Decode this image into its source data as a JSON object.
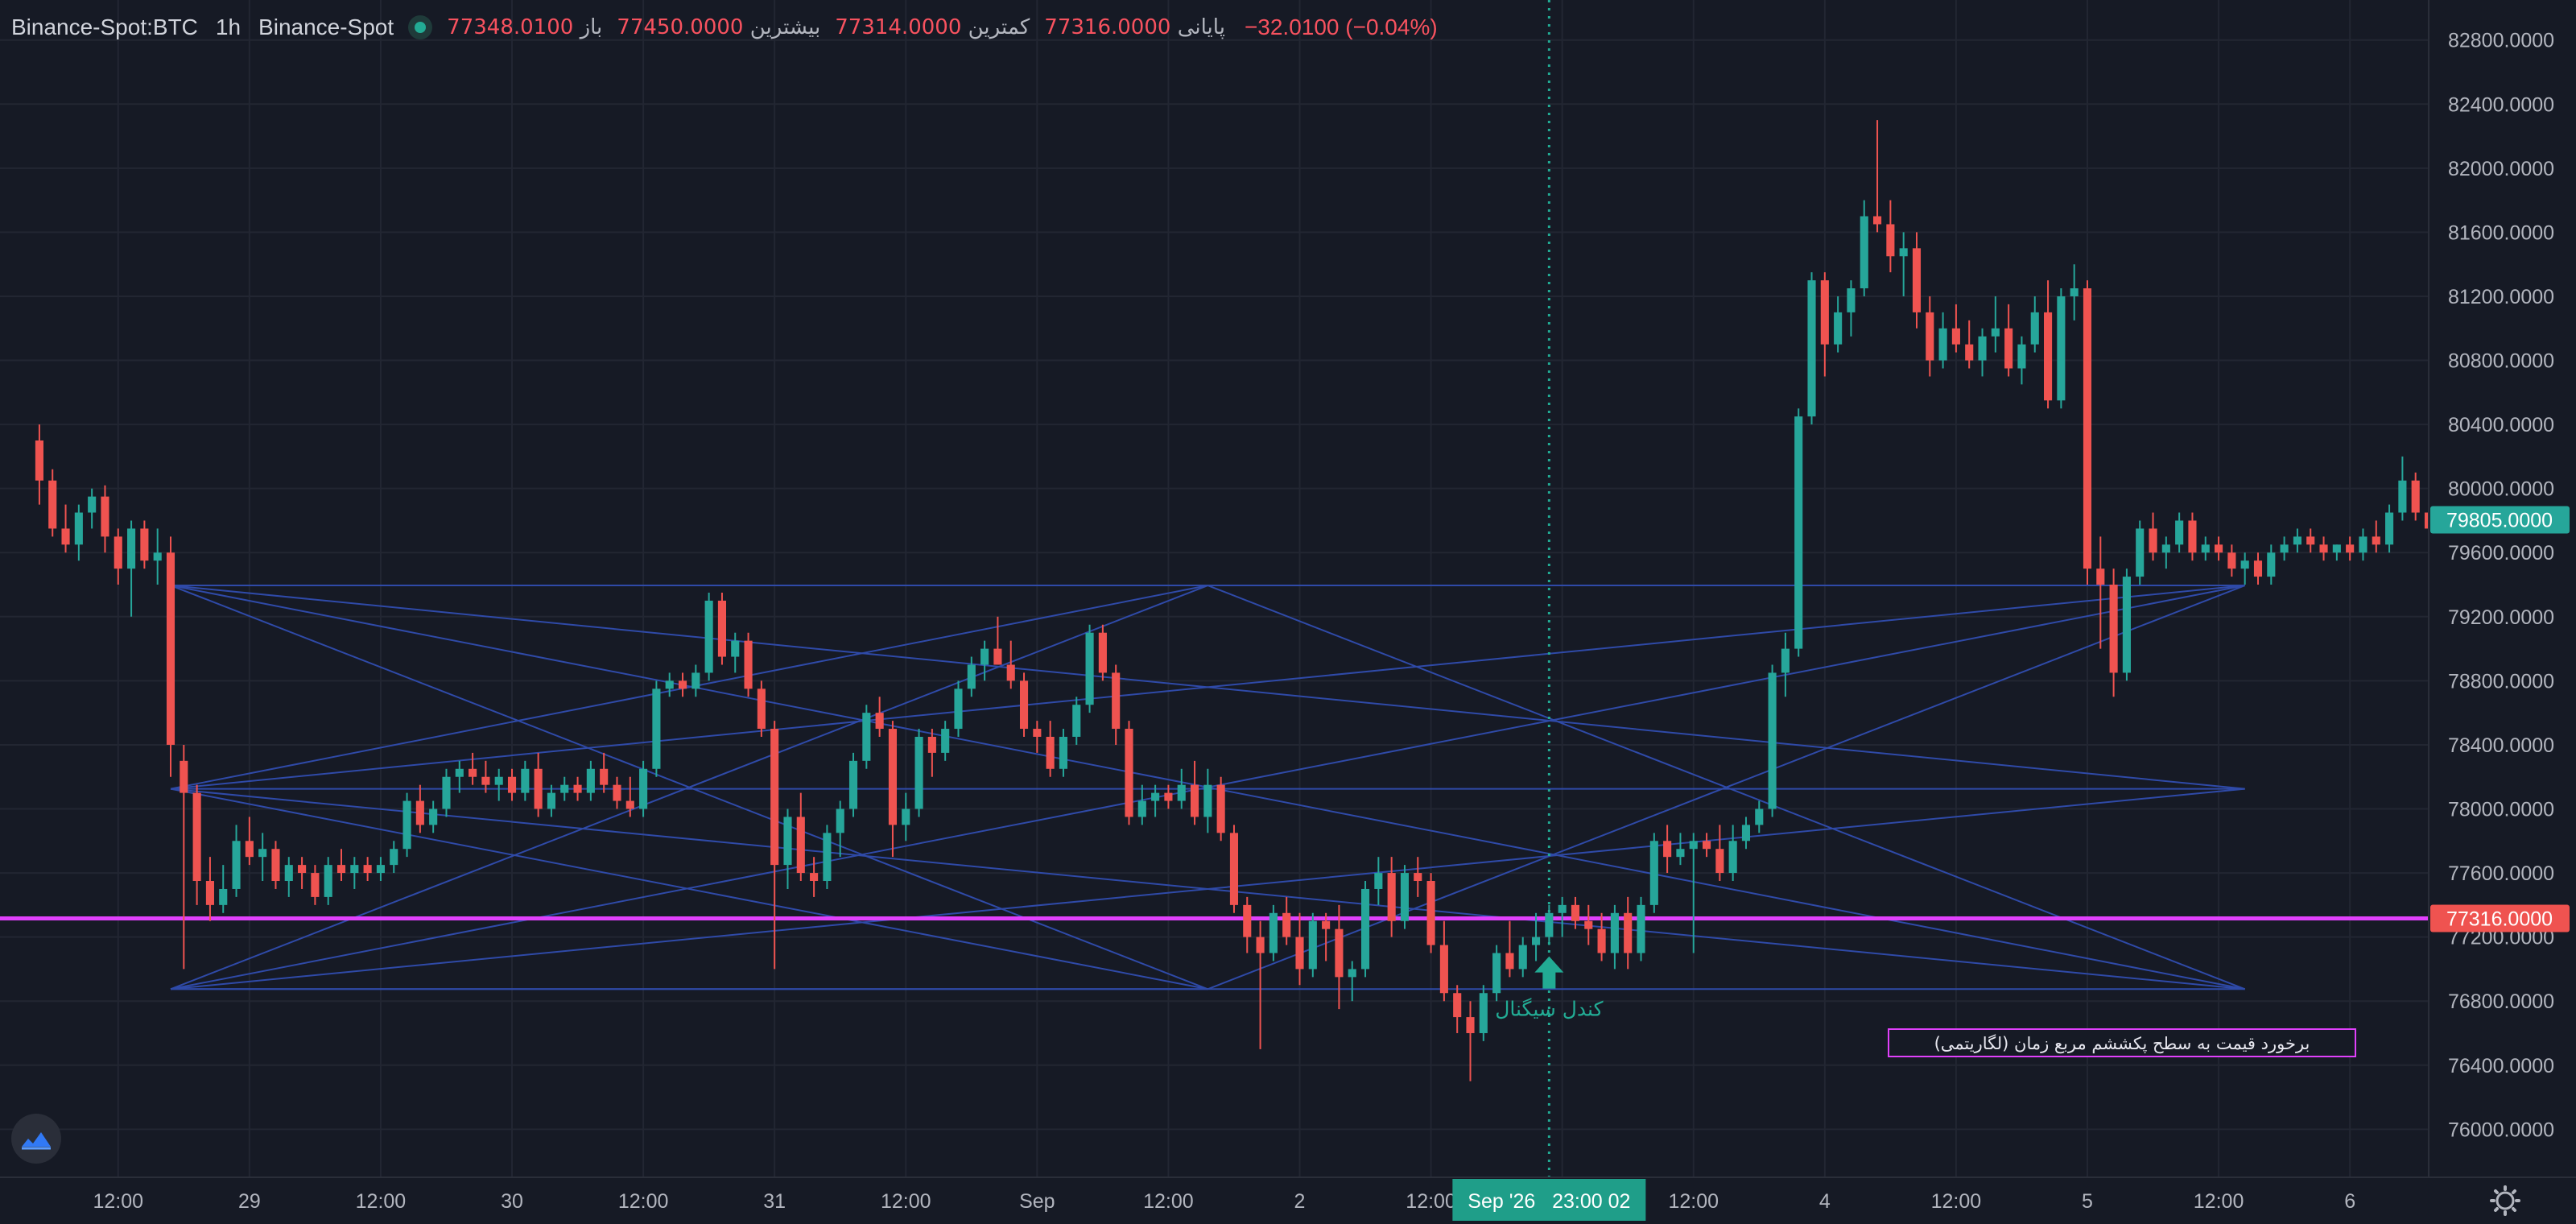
{
  "legend": {
    "symbol": "Binance-Spot:BTC",
    "interval": "1h",
    "exchange": "Binance-Spot",
    "open_label": "باز",
    "open": "77348.0100",
    "high_label": "بیشترین",
    "high": "77450.0000",
    "low_label": "کمترین",
    "low": "77314.0000",
    "close_label": "پایانی",
    "close": "77316.0000",
    "change": "−32.0100 (−0.04%)"
  },
  "colors": {
    "background": "#161a25",
    "up": "#26a69a",
    "down": "#ef5350",
    "level_line": "#e040fb",
    "fan_lines": "#2f4aa8",
    "crosshair": "#22ab94"
  },
  "annotations": {
    "signal_label": "کندل سیگنال",
    "box_text": "برخورد قیمت به سطح پکششم مربع زمان (لگاریتمی)"
  },
  "crosshair": {
    "label": "Sep '26   23:00 02"
  },
  "price_tags": {
    "current": "79805.0000",
    "level": "77316.0000"
  },
  "chart_data": {
    "type": "candlestick",
    "y_axis": {
      "ticks": [
        "82800.0000",
        "82400.0000",
        "82000.0000",
        "81600.0000",
        "81200.0000",
        "80800.0000",
        "80400.0000",
        "80000.0000",
        "79600.0000",
        "79200.0000",
        "78800.0000",
        "78400.0000",
        "78000.0000",
        "77600.0000",
        "77200.0000",
        "76800.0000",
        "76400.0000",
        "76000.0000"
      ],
      "tick_values": [
        82800,
        82400,
        82000,
        81600,
        81200,
        80800,
        80400,
        80000,
        79600,
        79200,
        78800,
        78400,
        78000,
        77600,
        77200,
        76800,
        76400,
        76000
      ],
      "range": [
        75700,
        83050
      ]
    },
    "x_axis": {
      "labels": [
        "12:00",
        "29",
        "12:00",
        "30",
        "12:00",
        "31",
        "12:00",
        "Sep",
        "12:00",
        "2",
        "12:00",
        "3",
        "12:00",
        "4",
        "12:00",
        "5",
        "12:00",
        "6"
      ],
      "label_bars": [
        6,
        16,
        26,
        36,
        46,
        56,
        66,
        76,
        86,
        96,
        106,
        116,
        126,
        136,
        146,
        156,
        166,
        176
      ],
      "range_bars": [
        -3,
        182
      ]
    },
    "horizontal_level": 77316,
    "crosshair_bar": 115,
    "signal_bar": 115,
    "fan_anchors": [
      {
        "bar": 10,
        "price": 79395
      },
      {
        "bar": 10,
        "price": 78125
      },
      {
        "bar": 10,
        "price": 76875
      },
      {
        "bar": 89,
        "price": 79395
      },
      {
        "bar": 89,
        "price": 76875
      },
      {
        "bar": 168,
        "price": 79395
      },
      {
        "bar": 168,
        "price": 78125
      },
      {
        "bar": 168,
        "price": 76875
      }
    ],
    "fan_lines": [
      [
        0,
        7
      ],
      [
        0,
        6
      ],
      [
        0,
        4
      ],
      [
        0,
        5
      ],
      [
        1,
        5
      ],
      [
        1,
        6
      ],
      [
        1,
        7
      ],
      [
        1,
        3
      ],
      [
        2,
        5
      ],
      [
        2,
        6
      ],
      [
        2,
        3
      ],
      [
        2,
        4
      ],
      [
        3,
        7
      ],
      [
        4,
        5
      ],
      [
        0,
        3
      ],
      [
        2,
        7
      ],
      [
        1,
        4
      ]
    ],
    "candles": [
      [
        80300,
        80400,
        79900,
        80050
      ],
      [
        80050,
        80120,
        79700,
        79750
      ],
      [
        79750,
        79900,
        79600,
        79650
      ],
      [
        79650,
        79900,
        79550,
        79850
      ],
      [
        79850,
        80000,
        79750,
        79950
      ],
      [
        79950,
        80020,
        79600,
        79700
      ],
      [
        79700,
        79750,
        79400,
        79500
      ],
      [
        79500,
        79800,
        79200,
        79750
      ],
      [
        79750,
        79800,
        79500,
        79550
      ],
      [
        79550,
        79750,
        79400,
        79600
      ],
      [
        79600,
        79700,
        78200,
        78400
      ],
      [
        78300,
        78400,
        77000,
        78100
      ],
      [
        78100,
        78150,
        77400,
        77550
      ],
      [
        77550,
        77700,
        77300,
        77400
      ],
      [
        77400,
        77650,
        77350,
        77500
      ],
      [
        77500,
        77900,
        77450,
        77800
      ],
      [
        77800,
        77950,
        77650,
        77700
      ],
      [
        77700,
        77850,
        77550,
        77750
      ],
      [
        77750,
        77800,
        77500,
        77550
      ],
      [
        77550,
        77700,
        77450,
        77650
      ],
      [
        77650,
        77700,
        77500,
        77600
      ],
      [
        77600,
        77650,
        77400,
        77450
      ],
      [
        77450,
        77700,
        77400,
        77650
      ],
      [
        77650,
        77750,
        77550,
        77600
      ],
      [
        77600,
        77700,
        77500,
        77650
      ],
      [
        77650,
        77700,
        77550,
        77600
      ],
      [
        77600,
        77700,
        77550,
        77650
      ],
      [
        77650,
        77800,
        77600,
        77750
      ],
      [
        77750,
        78100,
        77700,
        78050
      ],
      [
        78050,
        78150,
        77850,
        77900
      ],
      [
        77900,
        78050,
        77850,
        78000
      ],
      [
        78000,
        78250,
        77950,
        78200
      ],
      [
        78200,
        78300,
        78100,
        78250
      ],
      [
        78250,
        78350,
        78150,
        78200
      ],
      [
        78200,
        78300,
        78100,
        78150
      ],
      [
        78150,
        78250,
        78050,
        78200
      ],
      [
        78200,
        78250,
        78050,
        78100
      ],
      [
        78100,
        78300,
        78050,
        78250
      ],
      [
        78250,
        78350,
        77950,
        78000
      ],
      [
        78000,
        78150,
        77950,
        78100
      ],
      [
        78100,
        78200,
        78050,
        78150
      ],
      [
        78150,
        78200,
        78050,
        78100
      ],
      [
        78100,
        78300,
        78050,
        78250
      ],
      [
        78250,
        78350,
        78100,
        78150
      ],
      [
        78150,
        78200,
        78000,
        78050
      ],
      [
        78050,
        78200,
        77950,
        78000
      ],
      [
        78000,
        78300,
        77950,
        78250
      ],
      [
        78250,
        78800,
        78200,
        78750
      ],
      [
        78750,
        78850,
        78700,
        78800
      ],
      [
        78800,
        78850,
        78700,
        78750
      ],
      [
        78750,
        78900,
        78700,
        78850
      ],
      [
        78850,
        79350,
        78800,
        79300
      ],
      [
        79300,
        79350,
        78900,
        78950
      ],
      [
        78950,
        79100,
        78850,
        79050
      ],
      [
        79050,
        79100,
        78700,
        78750
      ],
      [
        78750,
        78800,
        78450,
        78500
      ],
      [
        78500,
        78550,
        77000,
        77650
      ],
      [
        77650,
        78000,
        77500,
        77950
      ],
      [
        77950,
        78100,
        77550,
        77600
      ],
      [
        77600,
        77700,
        77450,
        77550
      ],
      [
        77550,
        77900,
        77500,
        77850
      ],
      [
        77850,
        78050,
        77700,
        78000
      ],
      [
        78000,
        78350,
        77950,
        78300
      ],
      [
        78300,
        78650,
        78250,
        78600
      ],
      [
        78600,
        78700,
        78450,
        78500
      ],
      [
        78500,
        78550,
        77700,
        77900
      ],
      [
        77900,
        78100,
        77800,
        78000
      ],
      [
        78000,
        78500,
        77950,
        78450
      ],
      [
        78450,
        78500,
        78200,
        78350
      ],
      [
        78350,
        78550,
        78300,
        78500
      ],
      [
        78500,
        78800,
        78450,
        78750
      ],
      [
        78750,
        78950,
        78700,
        78900
      ],
      [
        78900,
        79050,
        78800,
        79000
      ],
      [
        79000,
        79200,
        78900,
        78900
      ],
      [
        78900,
        79050,
        78750,
        78800
      ],
      [
        78800,
        78850,
        78450,
        78500
      ],
      [
        78500,
        78550,
        78350,
        78450
      ],
      [
        78450,
        78550,
        78200,
        78250
      ],
      [
        78250,
        78500,
        78200,
        78450
      ],
      [
        78450,
        78700,
        78400,
        78650
      ],
      [
        78650,
        79150,
        78600,
        79100
      ],
      [
        79100,
        79150,
        78800,
        78850
      ],
      [
        78850,
        78900,
        78400,
        78500
      ],
      [
        78500,
        78550,
        77900,
        77950
      ],
      [
        77950,
        78150,
        77900,
        78050
      ],
      [
        78050,
        78150,
        77950,
        78100
      ],
      [
        78100,
        78150,
        78000,
        78050
      ],
      [
        78050,
        78250,
        78000,
        78150
      ],
      [
        78150,
        78300,
        77900,
        77950
      ],
      [
        77950,
        78250,
        77850,
        78150
      ],
      [
        78150,
        78200,
        77800,
        77850
      ],
      [
        77850,
        77900,
        77350,
        77400
      ],
      [
        77400,
        77450,
        77100,
        77200
      ],
      [
        77200,
        77300,
        76500,
        77100
      ],
      [
        77100,
        77400,
        77050,
        77350
      ],
      [
        77350,
        77450,
        77150,
        77200
      ],
      [
        77200,
        77350,
        76900,
        77000
      ],
      [
        77000,
        77350,
        76950,
        77300
      ],
      [
        77300,
        77350,
        77050,
        77250
      ],
      [
        77250,
        77400,
        76750,
        76950
      ],
      [
        76950,
        77050,
        76800,
        77000
      ],
      [
        77000,
        77550,
        76950,
        77500
      ],
      [
        77500,
        77700,
        77400,
        77600
      ],
      [
        77600,
        77700,
        77200,
        77300
      ],
      [
        77300,
        77650,
        77250,
        77600
      ],
      [
        77600,
        77700,
        77450,
        77550
      ],
      [
        77550,
        77600,
        77100,
        77150
      ],
      [
        77150,
        77300,
        76800,
        76850
      ],
      [
        76850,
        76900,
        76600,
        76700
      ],
      [
        76700,
        76800,
        76300,
        76600
      ],
      [
        76600,
        76900,
        76550,
        76850
      ],
      [
        76850,
        77150,
        76800,
        77100
      ],
      [
        77100,
        77300,
        76950,
        77000
      ],
      [
        77000,
        77200,
        76950,
        77150
      ],
      [
        77150,
        77350,
        77050,
        77200
      ],
      [
        77200,
        77400,
        77150,
        77350
      ],
      [
        77350,
        77450,
        77200,
        77400
      ],
      [
        77400,
        77450,
        77250,
        77300
      ],
      [
        77300,
        77400,
        77150,
        77250
      ],
      [
        77250,
        77350,
        77050,
        77100
      ],
      [
        77100,
        77400,
        77000,
        77350
      ],
      [
        77350,
        77450,
        77000,
        77100
      ],
      [
        77100,
        77450,
        77050,
        77400
      ],
      [
        77400,
        77850,
        77350,
        77800
      ],
      [
        77800,
        77900,
        77600,
        77700
      ],
      [
        77700,
        77850,
        77650,
        77750
      ],
      [
        77750,
        77850,
        77100,
        77800
      ],
      [
        77800,
        77850,
        77700,
        77750
      ],
      [
        77750,
        77900,
        77550,
        77600
      ],
      [
        77600,
        77900,
        77550,
        77800
      ],
      [
        77800,
        77950,
        77750,
        77900
      ],
      [
        77900,
        78050,
        77850,
        78000
      ],
      [
        78000,
        78900,
        77950,
        78850
      ],
      [
        78850,
        79100,
        78700,
        79000
      ],
      [
        79000,
        80500,
        78950,
        80450
      ],
      [
        80450,
        81350,
        80400,
        81300
      ],
      [
        81300,
        81350,
        80700,
        80900
      ],
      [
        80900,
        81200,
        80850,
        81100
      ],
      [
        81100,
        81300,
        80950,
        81250
      ],
      [
        81250,
        81800,
        81200,
        81700
      ],
      [
        81700,
        82300,
        81600,
        81650
      ],
      [
        81650,
        81800,
        81350,
        81450
      ],
      [
        81450,
        81600,
        81200,
        81500
      ],
      [
        81500,
        81600,
        81000,
        81100
      ],
      [
        81100,
        81200,
        80700,
        80800
      ],
      [
        80800,
        81100,
        80750,
        81000
      ],
      [
        81000,
        81150,
        80850,
        80900
      ],
      [
        80900,
        81050,
        80750,
        80800
      ],
      [
        80800,
        81000,
        80700,
        80950
      ],
      [
        80950,
        81200,
        80850,
        81000
      ],
      [
        81000,
        81150,
        80700,
        80750
      ],
      [
        80750,
        80950,
        80650,
        80900
      ],
      [
        80900,
        81200,
        80850,
        81100
      ],
      [
        81100,
        81300,
        80500,
        80550
      ],
      [
        80550,
        81250,
        80500,
        81200
      ],
      [
        81200,
        81400,
        81050,
        81250
      ],
      [
        81250,
        81300,
        79400,
        79500
      ],
      [
        79500,
        79700,
        79000,
        79400
      ],
      [
        79400,
        79500,
        78700,
        78850
      ],
      [
        78850,
        79500,
        78800,
        79450
      ],
      [
        79450,
        79800,
        79400,
        79750
      ],
      [
        79750,
        79850,
        79550,
        79600
      ],
      [
        79600,
        79700,
        79500,
        79650
      ],
      [
        79650,
        79850,
        79600,
        79800
      ],
      [
        79800,
        79850,
        79550,
        79600
      ],
      [
        79600,
        79700,
        79550,
        79650
      ],
      [
        79650,
        79700,
        79550,
        79600
      ],
      [
        79600,
        79650,
        79450,
        79500
      ],
      [
        79500,
        79600,
        79400,
        79550
      ],
      [
        79550,
        79600,
        79400,
        79450
      ],
      [
        79450,
        79650,
        79400,
        79600
      ],
      [
        79600,
        79700,
        79550,
        79650
      ],
      [
        79650,
        79750,
        79600,
        79700
      ],
      [
        79700,
        79750,
        79600,
        79650
      ],
      [
        79650,
        79700,
        79550,
        79600
      ],
      [
        79600,
        79650,
        79550,
        79650
      ],
      [
        79650,
        79700,
        79550,
        79600
      ],
      [
        79600,
        79750,
        79550,
        79700
      ],
      [
        79700,
        79800,
        79600,
        79650
      ],
      [
        79650,
        79900,
        79600,
        79850
      ],
      [
        79850,
        80200,
        79800,
        80050
      ],
      [
        80050,
        80100,
        79800,
        79850
      ],
      [
        79850,
        79950,
        79700,
        79750
      ],
      [
        79750,
        79900,
        79650,
        79850
      ],
      [
        79850,
        79950,
        79700,
        79800
      ],
      [
        79800,
        79950,
        79750,
        79900
      ],
      [
        79900,
        80000,
        79800,
        79950
      ],
      [
        79950,
        80100,
        79850,
        80000
      ],
      [
        80000,
        80050,
        79800,
        79850
      ],
      [
        79850,
        80050,
        79800,
        80000
      ],
      [
        80000,
        80050,
        79750,
        79800
      ],
      [
        79800,
        79850,
        79600,
        79805
      ]
    ]
  }
}
